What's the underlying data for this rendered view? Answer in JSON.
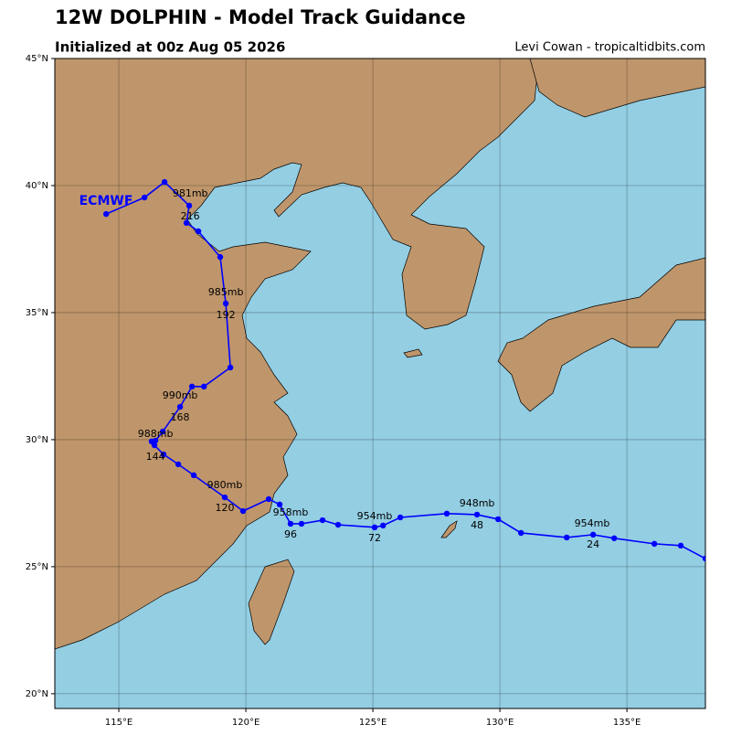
{
  "chart_data": {
    "type": "line",
    "title": "12W DOLPHIN - Model Track Guidance",
    "subtitle": "Initialized at 00z Aug 05 2026",
    "credit": "Levi Cowan - tropicaltidbits.com",
    "xlim": [
      112.48,
      138.09
    ],
    "ylim": [
      19.42,
      45
    ],
    "xticks": [
      {
        "value": 115,
        "label": "115°E"
      },
      {
        "value": 120,
        "label": "120°E"
      },
      {
        "value": 125,
        "label": "125°E"
      },
      {
        "value": 130,
        "label": "130°E"
      },
      {
        "value": 135,
        "label": "135°E"
      }
    ],
    "yticks": [
      {
        "value": 20,
        "label": "20°N"
      },
      {
        "value": 25,
        "label": "25°N"
      },
      {
        "value": 30,
        "label": "30°N"
      },
      {
        "value": 35,
        "label": "35°N"
      },
      {
        "value": 40,
        "label": "40°N"
      },
      {
        "value": 45,
        "label": "45°N"
      }
    ],
    "grid": true,
    "x": [
      138.09,
      137.12,
      136.08,
      134.5,
      133.67,
      132.63,
      130.83,
      129.93,
      129.1,
      127.91,
      126.08,
      125.4,
      125.07,
      123.63,
      123.02,
      122.19,
      121.76,
      121.33,
      120.9,
      119.89,
      119.17,
      117.95,
      117.34,
      116.76,
      116.4,
      116.29,
      116.44,
      116.73,
      117.41,
      117.88,
      118.35,
      119.39,
      119.21,
      118.99,
      118.13,
      117.66,
      117.77,
      116.8,
      116.01,
      114.5
    ],
    "series": [
      {
        "name": "ECMWF",
        "color": "#0000ff",
        "values": [
          25.32,
          25.83,
          25.9,
          26.12,
          26.26,
          26.15,
          26.33,
          26.87,
          27.05,
          27.09,
          26.94,
          26.62,
          26.55,
          26.65,
          26.83,
          26.69,
          26.69,
          27.45,
          27.66,
          27.19,
          27.73,
          28.6,
          29.03,
          29.42,
          29.78,
          29.93,
          29.96,
          30.32,
          31.29,
          32.09,
          32.09,
          32.84,
          35.36,
          37.19,
          38.2,
          38.53,
          39.21,
          40.14,
          39.53,
          38.88
        ]
      }
    ],
    "annotations": [
      {
        "text": "954mb",
        "x": 133.63,
        "y": 26.69
      },
      {
        "text": "24",
        "x": 133.67,
        "y": 25.86
      },
      {
        "text": "948mb",
        "x": 129.1,
        "y": 27.48
      },
      {
        "text": "48",
        "x": 129.1,
        "y": 26.62
      },
      {
        "text": "954mb",
        "x": 125.07,
        "y": 26.98
      },
      {
        "text": "72",
        "x": 125.07,
        "y": 26.12
      },
      {
        "text": "958mb",
        "x": 121.76,
        "y": 27.12
      },
      {
        "text": "96",
        "x": 121.76,
        "y": 26.26
      },
      {
        "text": "980mb",
        "x": 119.17,
        "y": 28.2
      },
      {
        "text": "120",
        "x": 119.17,
        "y": 27.3
      },
      {
        "text": "988mb",
        "x": 116.44,
        "y": 30.22
      },
      {
        "text": "144",
        "x": 116.44,
        "y": 29.32
      },
      {
        "text": "990mb",
        "x": 117.41,
        "y": 31.73
      },
      {
        "text": "168",
        "x": 117.41,
        "y": 30.86
      },
      {
        "text": "985mb",
        "x": 119.21,
        "y": 35.79
      },
      {
        "text": "192",
        "x": 119.21,
        "y": 34.89
      },
      {
        "text": "981mb",
        "x": 117.81,
        "y": 39.68
      },
      {
        "text": "216",
        "x": 117.81,
        "y": 38.78
      }
    ]
  }
}
